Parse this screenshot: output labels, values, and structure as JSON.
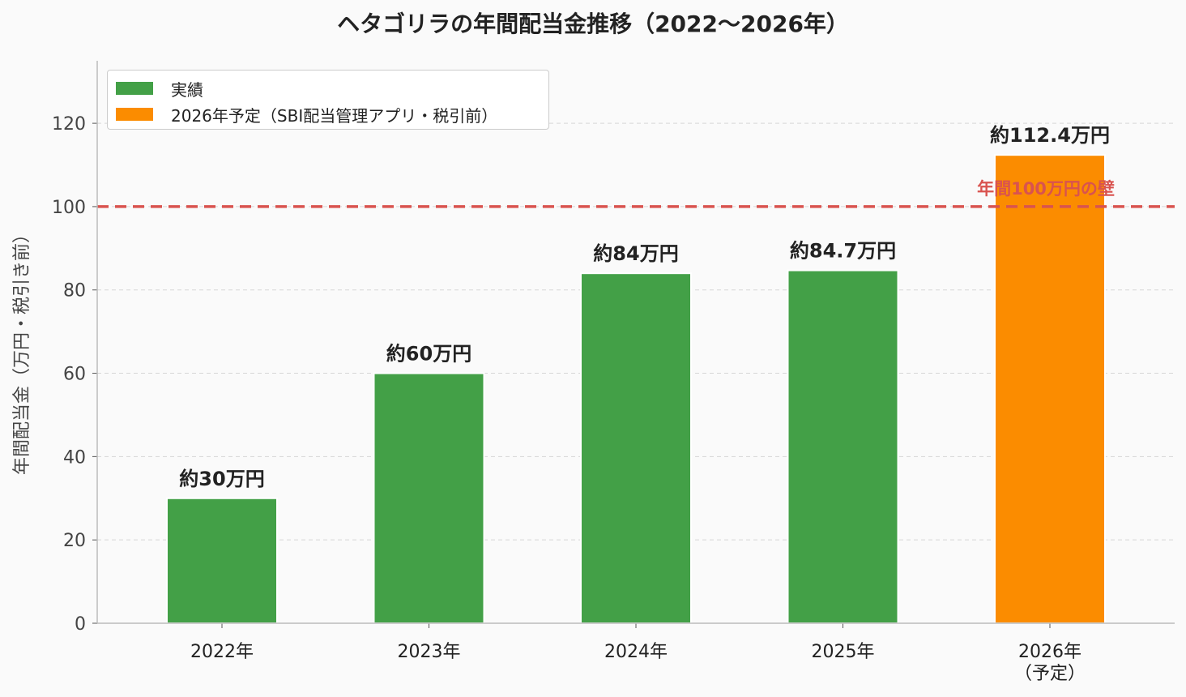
{
  "chart_data": {
    "type": "bar",
    "title": "ヘタゴリラの年間配当金推移（2022〜2026年）",
    "ylabel": "年間配当金（万円・税引き前）",
    "xlabel": "",
    "ylim": [
      0,
      135
    ],
    "yticks": [
      "0",
      "20",
      "40",
      "60",
      "80",
      "100",
      "120"
    ],
    "grid": true,
    "legend_position": "top-left",
    "categories": [
      "2022年",
      "2023年",
      "2024年",
      "2025年",
      "2026年\n（予定）"
    ],
    "values": [
      30,
      60,
      84,
      84.7,
      112.4
    ],
    "data_labels": [
      "約30万円",
      "約60万円",
      "約84万円",
      "約84.7万円",
      "約112.4万円"
    ],
    "bar_series": [
      "actual",
      "actual",
      "actual",
      "actual",
      "planned"
    ],
    "legend": [
      {
        "key": "actual",
        "label": "実績",
        "color": "#43a047"
      },
      {
        "key": "planned",
        "label": "2026年予定（SBI配当管理アプリ・税引前）",
        "color": "#fb8c00"
      }
    ],
    "reference_line": {
      "value": 100,
      "label": "年間100万円の壁",
      "color": "#d9534f"
    }
  }
}
